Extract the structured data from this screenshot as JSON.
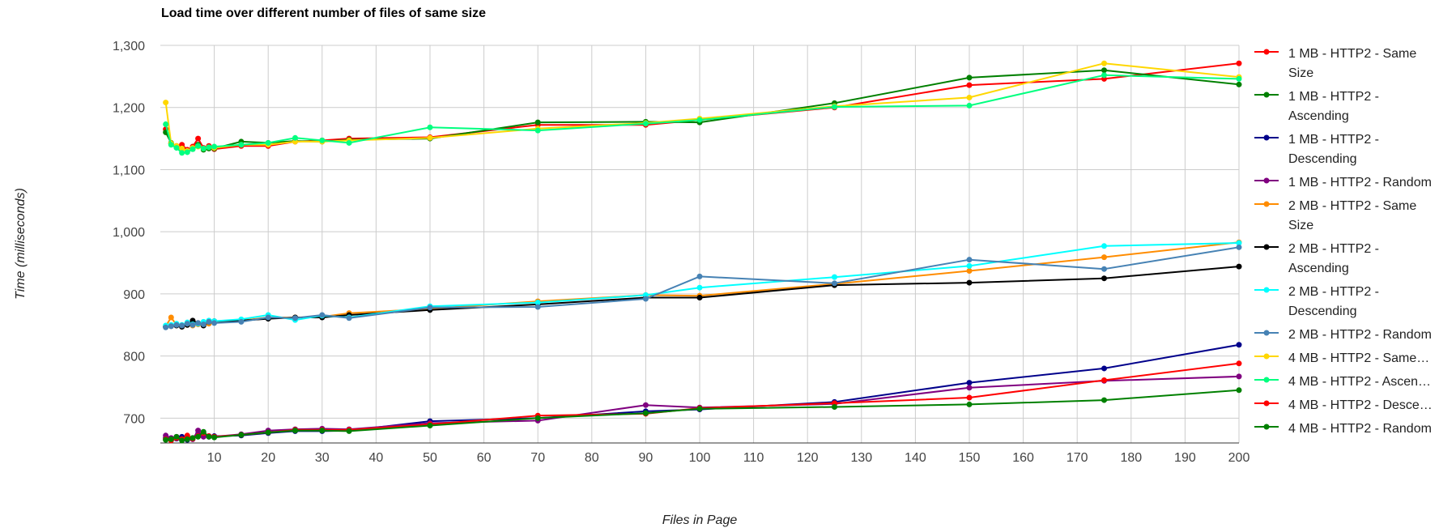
{
  "chart_data": {
    "type": "line",
    "title": "Load time over different number of files of same size",
    "xlabel": "Files in Page",
    "ylabel": "Time (milliseconds)",
    "xlim": [
      0,
      200
    ],
    "ylim": [
      660,
      1300
    ],
    "x_ticks": [
      10,
      20,
      30,
      40,
      50,
      60,
      70,
      80,
      90,
      100,
      110,
      120,
      130,
      140,
      150,
      160,
      170,
      180,
      190,
      200
    ],
    "y_ticks": [
      700,
      800,
      900,
      1000,
      1100,
      1200,
      1300
    ],
    "y_tick_labels": [
      "700",
      "800",
      "900",
      "1,000",
      "1,100",
      "1,200",
      "1,300"
    ],
    "grid": true,
    "legend_position": "right",
    "x": [
      1,
      2,
      3,
      4,
      5,
      6,
      7,
      8,
      9,
      10,
      15,
      20,
      25,
      30,
      35,
      50,
      70,
      90,
      100,
      125,
      150,
      175,
      200
    ],
    "series": [
      {
        "name": "1 MB - HTTP2 - Same Size",
        "legend_lines": [
          "1 MB - HTTP2 - Same",
          "Size"
        ],
        "color": "#ff0000",
        "values": [
          1165,
          1142,
          1138,
          1140,
          1132,
          1137,
          1150,
          1135,
          1138,
          1133,
          1138,
          1138,
          1145,
          1147,
          1150,
          1152,
          1172,
          1172,
          1180,
          1200,
          1236,
          1246,
          1271
        ]
      },
      {
        "name": "1 MB - HTTP2 - Ascending",
        "legend_lines": [
          "1 MB - HTTP2 -",
          "Ascending"
        ],
        "color": "#008000",
        "values": [
          1160,
          1143,
          1136,
          1134,
          1130,
          1133,
          1140,
          1132,
          1134,
          1134,
          1145,
          1143,
          1146,
          1145,
          1148,
          1150,
          1176,
          1177,
          1176,
          1207,
          1248,
          1260,
          1237
        ]
      },
      {
        "name": "1 MB - HTTP2 - Descending",
        "legend_lines": [
          "1 MB - HTTP2 -",
          "Descending"
        ],
        "color": "#00008b",
        "values": [
          668,
          665,
          667,
          670,
          665,
          668,
          675,
          672,
          670,
          671,
          672,
          676,
          679,
          679,
          680,
          695,
          700,
          711,
          714,
          726,
          757,
          780,
          818
        ]
      },
      {
        "name": "1 MB - HTTP2 - Random",
        "legend_lines": [
          "1 MB - HTTP2 - Random"
        ],
        "color": "#800080",
        "values": [
          672,
          668,
          670,
          665,
          669,
          666,
          680,
          670,
          671,
          670,
          674,
          680,
          682,
          683,
          682,
          692,
          696,
          721,
          717,
          723,
          749,
          760,
          767
        ]
      },
      {
        "name": "2 MB - HTTP2 - Same Size",
        "legend_lines": [
          "2 MB - HTTP2 - Same",
          "Size"
        ],
        "color": "#ff8c00",
        "values": [
          848,
          862,
          850,
          848,
          852,
          849,
          851,
          850,
          852,
          854,
          857,
          862,
          862,
          863,
          869,
          876,
          888,
          898,
          897,
          916,
          937,
          959,
          983
        ]
      },
      {
        "name": "2 MB - HTTP2 - Ascending",
        "legend_lines": [
          "2 MB - HTTP2 -",
          "Ascending"
        ],
        "color": "#000000",
        "values": [
          847,
          848,
          849,
          847,
          850,
          857,
          853,
          849,
          855,
          856,
          857,
          860,
          862,
          862,
          866,
          874,
          883,
          894,
          894,
          914,
          918,
          925,
          944
        ]
      },
      {
        "name": "2 MB - HTTP2 - Descending",
        "legend_lines": [
          "2 MB - HTTP2 -",
          "Descending"
        ],
        "color": "#00ffff",
        "values": [
          849,
          850,
          852,
          850,
          854,
          851,
          852,
          855,
          857,
          856,
          859,
          866,
          858,
          865,
          862,
          880,
          886,
          898,
          910,
          927,
          945,
          977,
          982
        ]
      },
      {
        "name": "2 MB - HTTP2 - Random",
        "legend_lines": [
          "2 MB - HTTP2 - Random"
        ],
        "color": "#4682b4",
        "values": [
          846,
          848,
          850,
          849,
          852,
          850,
          853,
          851,
          855,
          853,
          855,
          862,
          861,
          866,
          861,
          878,
          879,
          892,
          928,
          917,
          955,
          940,
          975
        ]
      },
      {
        "name": "4 MB - HTTP2 - Same...",
        "legend_lines": [
          "4 MB - HTTP2 - Same…"
        ],
        "color": "#ffd700",
        "values": [
          1208,
          1142,
          1138,
          1134,
          1130,
          1135,
          1137,
          1134,
          1136,
          1135,
          1140,
          1140,
          1145,
          1145,
          1147,
          1151,
          1166,
          1175,
          1182,
          1202,
          1216,
          1271,
          1249
        ]
      },
      {
        "name": "4 MB - HTTP2 - Ascen...",
        "legend_lines": [
          "4 MB - HTTP2 - Ascen…"
        ],
        "color": "#00ff7f",
        "values": [
          1173,
          1140,
          1135,
          1127,
          1128,
          1133,
          1138,
          1134,
          1136,
          1137,
          1140,
          1143,
          1151,
          1147,
          1143,
          1168,
          1163,
          1174,
          1180,
          1201,
          1203,
          1252,
          1246
        ]
      },
      {
        "name": "4 MB - HTTP2 - Desce...",
        "legend_lines": [
          "4 MB - HTTP2 - Desce…"
        ],
        "color": "#ff0000",
        "values": [
          666,
          664,
          668,
          666,
          672,
          667,
          671,
          676,
          671,
          670,
          673,
          677,
          681,
          681,
          681,
          690,
          704,
          707,
          716,
          724,
          733,
          761,
          788
        ]
      },
      {
        "name": "4 MB - HTTP2 - Random",
        "legend_lines": [
          "4 MB - HTTP2 - Random"
        ],
        "color": "#008000",
        "values": [
          665,
          666,
          670,
          664,
          666,
          668,
          670,
          678,
          670,
          669,
          673,
          677,
          680,
          680,
          679,
          688,
          700,
          708,
          715,
          718,
          722,
          729,
          745
        ]
      }
    ]
  }
}
